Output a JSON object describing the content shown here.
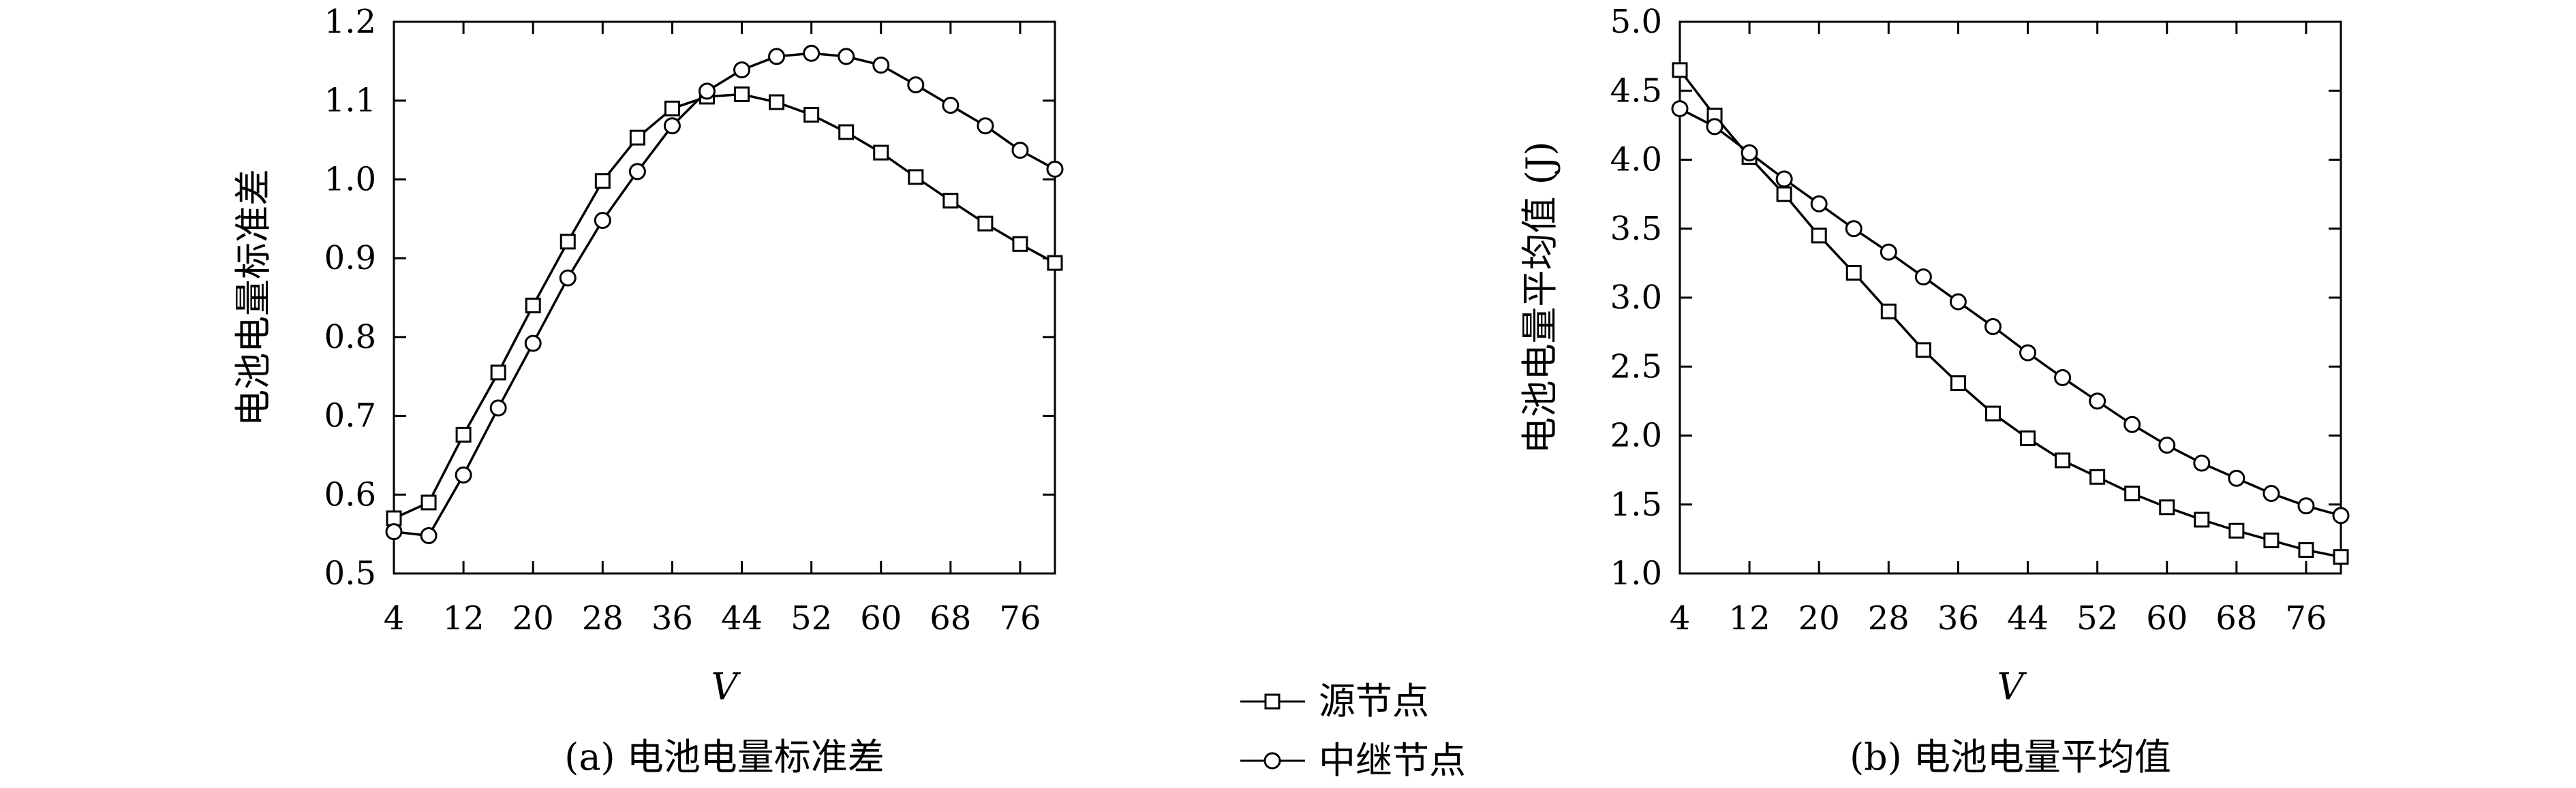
{
  "chart_data": [
    {
      "type": "line",
      "caption": "(a) 电池电量标准差",
      "xlabel": "V",
      "ylabel": "电池电量标准差",
      "xlim": [
        4,
        80
      ],
      "ylim": [
        0.5,
        1.2
      ],
      "xticks": [
        4,
        12,
        20,
        28,
        36,
        44,
        52,
        60,
        68,
        76
      ],
      "yticks": [
        "0.5",
        "0.6",
        "0.7",
        "0.8",
        "0.9",
        "1.0",
        "1.1",
        "1.2"
      ],
      "x": [
        4,
        8,
        12,
        16,
        20,
        24,
        28,
        32,
        36,
        40,
        44,
        48,
        52,
        56,
        60,
        64,
        68,
        72,
        76,
        80
      ],
      "series": [
        {
          "name": "源节点",
          "marker": "square",
          "values": [
            0.57,
            0.59,
            0.676,
            0.755,
            0.84,
            0.921,
            0.998,
            1.053,
            1.09,
            1.105,
            1.108,
            1.098,
            1.082,
            1.06,
            1.034,
            1.003,
            0.973,
            0.944,
            0.918,
            0.894
          ]
        },
        {
          "name": "中继节点",
          "marker": "circle",
          "values": [
            0.553,
            0.548,
            0.625,
            0.71,
            0.792,
            0.875,
            0.948,
            1.01,
            1.068,
            1.112,
            1.139,
            1.156,
            1.16,
            1.156,
            1.145,
            1.12,
            1.094,
            1.068,
            1.037,
            1.013
          ]
        }
      ]
    },
    {
      "type": "line",
      "caption": "(b) 电池电量平均值",
      "xlabel": "V",
      "ylabel": "电池电量平均值 (J)",
      "xlim": [
        4,
        80
      ],
      "ylim": [
        1.0,
        5.0
      ],
      "xticks": [
        4,
        12,
        20,
        28,
        36,
        44,
        52,
        60,
        68,
        76
      ],
      "yticks": [
        "1.0",
        "1.5",
        "2.0",
        "2.5",
        "3.0",
        "3.5",
        "4.0",
        "4.5",
        "5.0"
      ],
      "x": [
        4,
        8,
        12,
        16,
        20,
        24,
        28,
        32,
        36,
        40,
        44,
        48,
        52,
        56,
        60,
        64,
        68,
        72,
        76,
        80
      ],
      "series": [
        {
          "name": "源节点",
          "marker": "square",
          "values": [
            4.65,
            4.32,
            4.02,
            3.75,
            3.45,
            3.18,
            2.9,
            2.62,
            2.38,
            2.16,
            1.98,
            1.82,
            1.7,
            1.58,
            1.48,
            1.39,
            1.31,
            1.24,
            1.17,
            1.12
          ]
        },
        {
          "name": "中继节点",
          "marker": "circle",
          "values": [
            4.37,
            4.24,
            4.05,
            3.86,
            3.68,
            3.5,
            3.33,
            3.15,
            2.97,
            2.79,
            2.6,
            2.42,
            2.25,
            2.08,
            1.93,
            1.8,
            1.69,
            1.58,
            1.49,
            1.42
          ]
        }
      ]
    }
  ],
  "legend": [
    {
      "label": "源节点",
      "marker": "square"
    },
    {
      "label": "中继节点",
      "marker": "circle"
    }
  ]
}
